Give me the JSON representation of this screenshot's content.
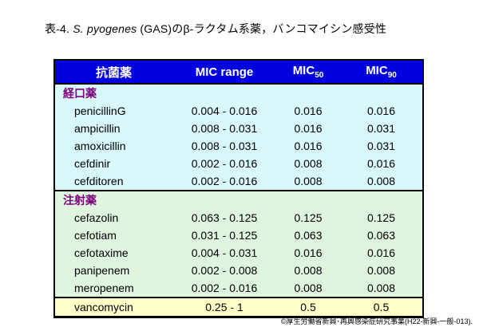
{
  "title": {
    "prefix": "表-4. ",
    "species": "S. pyogenes",
    "suffix": " (GAS)のβ-ラクタム系薬，バンコマイシン感受性"
  },
  "table": {
    "headers": {
      "drug": "抗菌薬",
      "mic_range": "MIC range",
      "mic50_base": "MIC",
      "mic50_sub": "50",
      "mic90_base": "MIC",
      "mic90_sub": "90"
    },
    "sections": [
      {
        "label": "経口薬",
        "rows": [
          {
            "name": "penicillinG",
            "range": "0.004 - 0.016",
            "mic50": "0.016",
            "mic90": "0.016"
          },
          {
            "name": "ampicillin",
            "range": "0.008 - 0.031",
            "mic50": "0.016",
            "mic90": "0.031"
          },
          {
            "name": "amoxicillin",
            "range": "0.008 - 0.031",
            "mic50": "0.016",
            "mic90": "0.031"
          },
          {
            "name": "cefdinir",
            "range": "0.002 - 0.016",
            "mic50": "0.008",
            "mic90": "0.016"
          },
          {
            "name": "cefditoren",
            "range": "0.002 - 0.016",
            "mic50": "0.008",
            "mic90": "0.008"
          }
        ]
      },
      {
        "label": "注射薬",
        "rows": [
          {
            "name": "cefazolin",
            "range": "0.063 - 0.125",
            "mic50": "0.125",
            "mic90": "0.125"
          },
          {
            "name": "cefotiam",
            "range": "0.031 - 0.125",
            "mic50": "0.063",
            "mic90": "0.063"
          },
          {
            "name": "cefotaxime",
            "range": "0.004 - 0.031",
            "mic50": "0.016",
            "mic90": "0.016"
          },
          {
            "name": "panipenem",
            "range": "0.002 - 0.008",
            "mic50": "0.008",
            "mic90": "0.008"
          },
          {
            "name": "meropenem",
            "range": "0.002 - 0.016",
            "mic50": "0.008",
            "mic90": "0.008"
          }
        ]
      }
    ],
    "vancomycin_row": {
      "name": "vancomycin",
      "range": "0.25 - 1",
      "mic50": "0.5",
      "mic90": "0.5"
    }
  },
  "credit": "©厚生労働省新興･再興感染症研究事業(H22-新興-一般-013).",
  "colors": {
    "header_bg": "#0202de",
    "oral_section_bg": "#d8f8fc",
    "injection_section_bg": "#dff5df",
    "vancomycin_bg": "#ffffc8",
    "section_label_color": "#800080",
    "border_color": "#000000"
  }
}
